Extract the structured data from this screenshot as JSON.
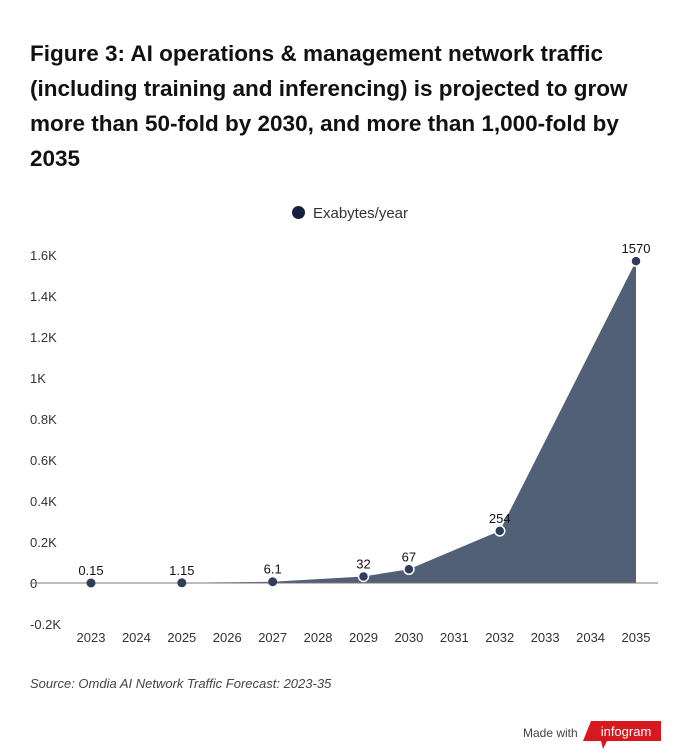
{
  "title": "Figure 3: AI operations & management network traffic (including training and inferencing) is projected to grow more than 50-fold by 2030, and more than 1,000-fold by 2035",
  "source": "Source: Omdia AI Network Traffic Forecast: 2023-35",
  "footer": {
    "made_with": "Made with",
    "brand": "infogram",
    "brand_color": "#d7181f"
  },
  "chart_data": {
    "type": "area",
    "categories": [
      "2023",
      "2024",
      "2025",
      "2026",
      "2027",
      "2028",
      "2029",
      "2030",
      "2031",
      "2032",
      "2033",
      "2034",
      "2035"
    ],
    "series": [
      {
        "name": "Exabytes/year",
        "points": [
          [
            "2023",
            0.15
          ],
          [
            "2025",
            1.15
          ],
          [
            "2027",
            6.1
          ],
          [
            "2029",
            32
          ],
          [
            "2030",
            67
          ],
          [
            "2032",
            254
          ],
          [
            "2035",
            1570
          ]
        ]
      }
    ],
    "data_labels": [
      "0.15",
      "1.15",
      "6.1",
      "32",
      "67",
      "254",
      "1570"
    ],
    "ylim": [
      -200,
      1600
    ],
    "yticks": [
      {
        "v": 1600,
        "l": "1.6K"
      },
      {
        "v": 1400,
        "l": "1.4K"
      },
      {
        "v": 1200,
        "l": "1.2K"
      },
      {
        "v": 1000,
        "l": "1K"
      },
      {
        "v": 800,
        "l": "0.8K"
      },
      {
        "v": 600,
        "l": "0.6K"
      },
      {
        "v": 400,
        "l": "0.4K"
      },
      {
        "v": 200,
        "l": "0.2K"
      },
      {
        "v": 0,
        "l": "0"
      },
      {
        "v": -200,
        "l": "-0.2K"
      }
    ],
    "legend_position": "top",
    "grid": false,
    "colors": {
      "area": "#515f77",
      "marker": "#2e3d5a",
      "legend": "#15223f"
    }
  }
}
